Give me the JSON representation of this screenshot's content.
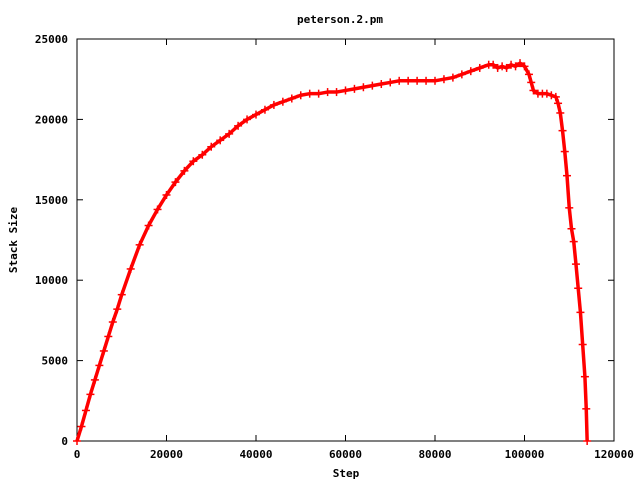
{
  "chart_data": {
    "type": "line",
    "title": "peterson.2.pm",
    "xlabel": "Step",
    "ylabel": "Stack Size",
    "xlim": [
      0,
      120000
    ],
    "ylim": [
      0,
      25000
    ],
    "x_ticks": [
      0,
      20000,
      40000,
      60000,
      80000,
      100000,
      120000
    ],
    "y_ticks": [
      0,
      5000,
      10000,
      15000,
      20000,
      25000
    ],
    "x_tick_labels": [
      "0",
      "20000",
      "40000",
      "60000",
      "80000",
      "100000",
      "120000"
    ],
    "y_tick_labels": [
      "0",
      "5000",
      "10000",
      "15000",
      "20000",
      "25000"
    ],
    "grid": false,
    "legend": "none",
    "series": [
      {
        "color": "#ff0000",
        "marker": "plus",
        "x": [
          0,
          1000,
          2000,
          3000,
          4000,
          5000,
          6000,
          7000,
          8000,
          9000,
          10000,
          12000,
          14000,
          16000,
          18000,
          20000,
          22000,
          24000,
          26000,
          28000,
          30000,
          32000,
          34000,
          36000,
          38000,
          40000,
          42000,
          44000,
          46000,
          48000,
          50000,
          52000,
          54000,
          56000,
          58000,
          60000,
          62000,
          64000,
          66000,
          68000,
          70000,
          72000,
          74000,
          76000,
          78000,
          80000,
          82000,
          84000,
          86000,
          88000,
          90000,
          92000,
          93000,
          94000,
          95000,
          96000,
          97000,
          98000,
          99000,
          100000,
          101000,
          101500,
          102000,
          103000,
          104000,
          105000,
          106000,
          107000,
          107500,
          108000,
          108500,
          109000,
          109500,
          110000,
          110500,
          111000,
          111500,
          112000,
          112500,
          113000,
          113500,
          113800,
          114000
        ],
        "y": [
          0,
          900,
          1900,
          2900,
          3800,
          4700,
          5600,
          6500,
          7400,
          8200,
          9100,
          10700,
          12200,
          13400,
          14400,
          15300,
          16100,
          16800,
          17400,
          17800,
          18300,
          18700,
          19100,
          19600,
          20000,
          20300,
          20600,
          20900,
          21100,
          21300,
          21500,
          21600,
          21600,
          21700,
          21700,
          21800,
          21900,
          22000,
          22100,
          22200,
          22300,
          22400,
          22400,
          22400,
          22400,
          22400,
          22500,
          22600,
          22800,
          23000,
          23200,
          23400,
          23400,
          23200,
          23300,
          23200,
          23400,
          23300,
          23500,
          23300,
          22800,
          22300,
          21800,
          21600,
          21600,
          21600,
          21500,
          21400,
          21000,
          20400,
          19300,
          18000,
          16500,
          14500,
          13200,
          12400,
          11000,
          9500,
          8000,
          6000,
          4000,
          2000,
          0
        ]
      }
    ]
  }
}
